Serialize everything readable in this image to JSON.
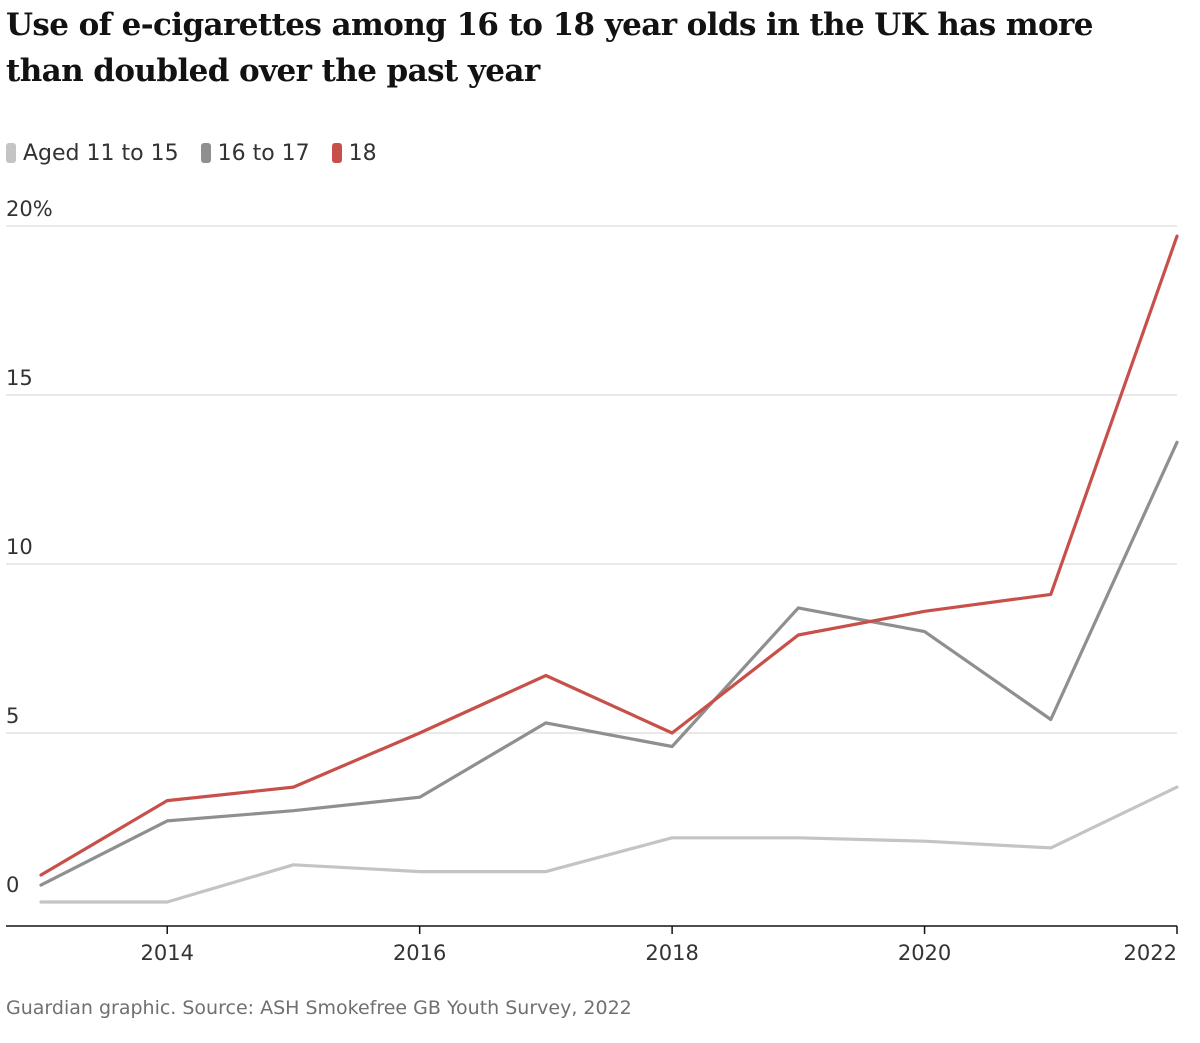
{
  "title": "Use of e-cigarettes among 16 to 18 year olds in the UK has more than doubled over the past year",
  "source": "Guardian graphic. Source: ASH Smokefree GB Youth Survey, 2022",
  "colors": {
    "aged_11_15": "#c4c4c4",
    "aged_16_17": "#8f8f8f",
    "aged_18": "#c8504a",
    "gridline": "#dcdcdc",
    "axis": "#121212"
  },
  "chart_data": {
    "type": "line",
    "title": "Use of e-cigarettes among 16 to 18 year olds in the UK has more than doubled over the past year",
    "xlabel": "",
    "ylabel": "",
    "x": [
      2013,
      2014,
      2015,
      2016,
      2017,
      2018,
      2019,
      2020,
      2021,
      2022
    ],
    "xlim": [
      2013,
      2022
    ],
    "ylim": [
      0,
      20
    ],
    "xticks": [
      2014,
      2016,
      2018,
      2020,
      2022
    ],
    "xtick_labels": [
      "2014",
      "2016",
      "2018",
      "2020",
      "2022"
    ],
    "yticks": [
      0,
      5,
      10,
      15,
      20
    ],
    "ytick_labels": [
      "0",
      "5",
      "10",
      "15",
      "20%"
    ],
    "grid": true,
    "legend_position": "top-left",
    "series": [
      {
        "name": "Aged 11 to 15",
        "color": "#c4c4c4",
        "values": [
          0,
          0,
          1.1,
          0.9,
          0.9,
          1.9,
          1.9,
          1.8,
          1.6,
          3.4
        ]
      },
      {
        "name": "16 to 17",
        "color": "#8f8f8f",
        "values": [
          0.5,
          2.4,
          2.7,
          3.1,
          5.3,
          4.6,
          8.7,
          8.0,
          5.4,
          13.6
        ]
      },
      {
        "name": "18",
        "color": "#c8504a",
        "values": [
          0.8,
          3.0,
          3.4,
          5.0,
          6.7,
          5.0,
          7.9,
          8.6,
          9.1,
          19.7
        ]
      }
    ]
  }
}
